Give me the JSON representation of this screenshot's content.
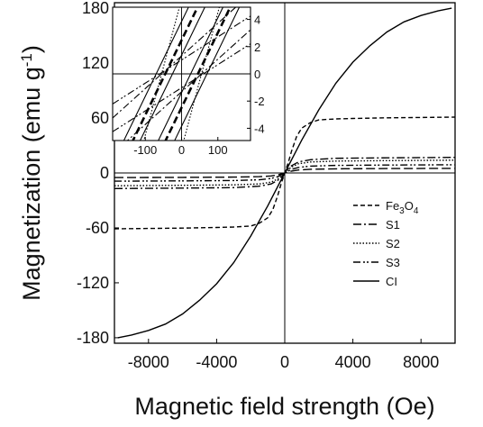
{
  "chart_data": {
    "type": "line",
    "xlabel": "Magnetic field strength (Oe)",
    "ylabel": {
      "prefix": "Magnetization (emu g",
      "sup": "-1",
      "suffix": ")"
    },
    "xlim": [
      -10000,
      10000
    ],
    "ylim": [
      -186,
      186
    ],
    "xticks": [
      -8000,
      -4000,
      0,
      4000,
      8000
    ],
    "xtick_labels": [
      "-8000",
      "-4000",
      "0",
      "4000",
      "8000"
    ],
    "yticks": [
      -180,
      -120,
      -60,
      0,
      60,
      120,
      180
    ],
    "ytick_labels": [
      "-180",
      "-120",
      "-60",
      "0",
      "60",
      "120",
      "180"
    ],
    "legend_position": "right",
    "series": [
      {
        "name": "Fe3O4",
        "label_base": "Fe",
        "label_sub1": "3",
        "label_mid": "O",
        "label_sub2": "4",
        "dash": "5,3",
        "x": [
          -10000,
          -8000,
          -6000,
          -4000,
          -3000,
          -2000,
          -1500,
          -1000,
          -700,
          -400,
          -200,
          0,
          200,
          400,
          700,
          1000,
          1500,
          2000,
          3000,
          4000,
          6000,
          8000,
          10000
        ],
        "y": [
          -61,
          -60.6,
          -60.2,
          -59.5,
          -59,
          -58,
          -55,
          -49,
          -40,
          -24,
          -11,
          0,
          11,
          24,
          40,
          49,
          55,
          58,
          59,
          59.5,
          60.2,
          60.6,
          61
        ]
      },
      {
        "name": "S1",
        "dash": "9,3,2,3",
        "x": [
          -10000,
          -6000,
          -3000,
          -1500,
          -800,
          -400,
          -200,
          0,
          200,
          400,
          800,
          1500,
          3000,
          6000,
          10000
        ],
        "y": [
          -17,
          -16.5,
          -16,
          -14.5,
          -12,
          -8,
          -4.5,
          0,
          4.5,
          8,
          12,
          14.5,
          16,
          16.5,
          17
        ]
      },
      {
        "name": "S2",
        "dash": "1.5,2",
        "x": [
          -10000,
          -6000,
          -3000,
          -1500,
          -800,
          -400,
          -200,
          0,
          200,
          400,
          800,
          1500,
          3000,
          6000,
          10000
        ],
        "y": [
          -14,
          -13.5,
          -13,
          -12,
          -10,
          -6.5,
          -3.5,
          0,
          3.5,
          6.5,
          10,
          12,
          13,
          13.5,
          14
        ]
      },
      {
        "name": "S3",
        "dash": "8,3,2,2,2,3",
        "x": [
          -10000,
          -6000,
          -3000,
          -1500,
          -800,
          -400,
          -200,
          0,
          200,
          400,
          800,
          1500,
          3000,
          6000,
          10000
        ],
        "y": [
          -9,
          -8.7,
          -8.3,
          -7.5,
          -6,
          -4,
          -2,
          0,
          2,
          4,
          6,
          7.5,
          8.3,
          8.7,
          9
        ]
      },
      {
        "name": "CI",
        "dash": "",
        "x": [
          -9800,
          -9000,
          -8000,
          -7000,
          -6000,
          -5000,
          -4000,
          -3000,
          -2000,
          -1000,
          0,
          1000,
          2000,
          3000,
          4000,
          5000,
          6000,
          7000,
          8000,
          9000,
          9800
        ],
        "y": [
          -180,
          -177,
          -172,
          -165,
          -154,
          -139,
          -121,
          -98,
          -69,
          -36,
          0,
          36,
          69,
          98,
          121,
          139,
          154,
          165,
          172,
          177,
          180
        ]
      },
      {
        "name": "",
        "dash": "10,4",
        "x": [
          -10000,
          -6000,
          -3000,
          -1500,
          -800,
          -400,
          -200,
          0,
          200,
          400,
          800,
          1500,
          3000,
          6000,
          10000
        ],
        "y": [
          -5,
          -4.8,
          -4.5,
          -4,
          -3.2,
          -2.1,
          -1.1,
          0,
          1.1,
          2.1,
          3.2,
          4,
          4.5,
          4.8,
          5
        ]
      }
    ],
    "inset": {
      "xlim": [
        -190,
        190
      ],
      "ylim": [
        -4.9,
        4.9
      ],
      "xticks": [
        -100,
        0,
        100
      ],
      "xtick_labels": [
        "-100",
        "0",
        "100"
      ],
      "yticks": [
        -4,
        -2,
        0,
        2,
        4
      ],
      "ytick_labels": [
        "-4",
        "-2",
        "0",
        "2",
        "4"
      ],
      "loops": [
        {
          "series": "CI",
          "dash": "",
          "slope": 0.055,
          "hc": 70
        },
        {
          "series": "CI",
          "dash": "",
          "slope": 0.055,
          "hc": -70
        },
        {
          "series": "CI (inner)",
          "dash": "",
          "slope": 0.055,
          "hc": 25
        },
        {
          "series": "CI (inner)",
          "dash": "",
          "slope": 0.055,
          "hc": -25
        },
        {
          "series": "dashed",
          "dash": "8,4",
          "slope": 0.055,
          "hc": 45,
          "width": 2.6
        },
        {
          "series": "dashed",
          "dash": "8,4",
          "slope": 0.055,
          "hc": -45,
          "width": 2.6
        },
        {
          "series": "Fe3O4",
          "dash": "1.5,2",
          "slope": 0.1,
          "hc": 55
        },
        {
          "series": "Fe3O4",
          "dash": "1.5,2",
          "slope": 0.1,
          "hc": -55
        },
        {
          "series": "S1",
          "dash": "8,3,2,3",
          "slope": 0.024,
          "hc": 55
        },
        {
          "series": "S1",
          "dash": "8,3,2,3",
          "slope": 0.024,
          "hc": -55
        },
        {
          "series": "S3",
          "dash": "8,3,2,2,2,3",
          "slope": 0.017,
          "hc": 60
        },
        {
          "series": "S3",
          "dash": "8,3,2,2,2,3",
          "slope": 0.017,
          "hc": -60
        }
      ]
    }
  }
}
